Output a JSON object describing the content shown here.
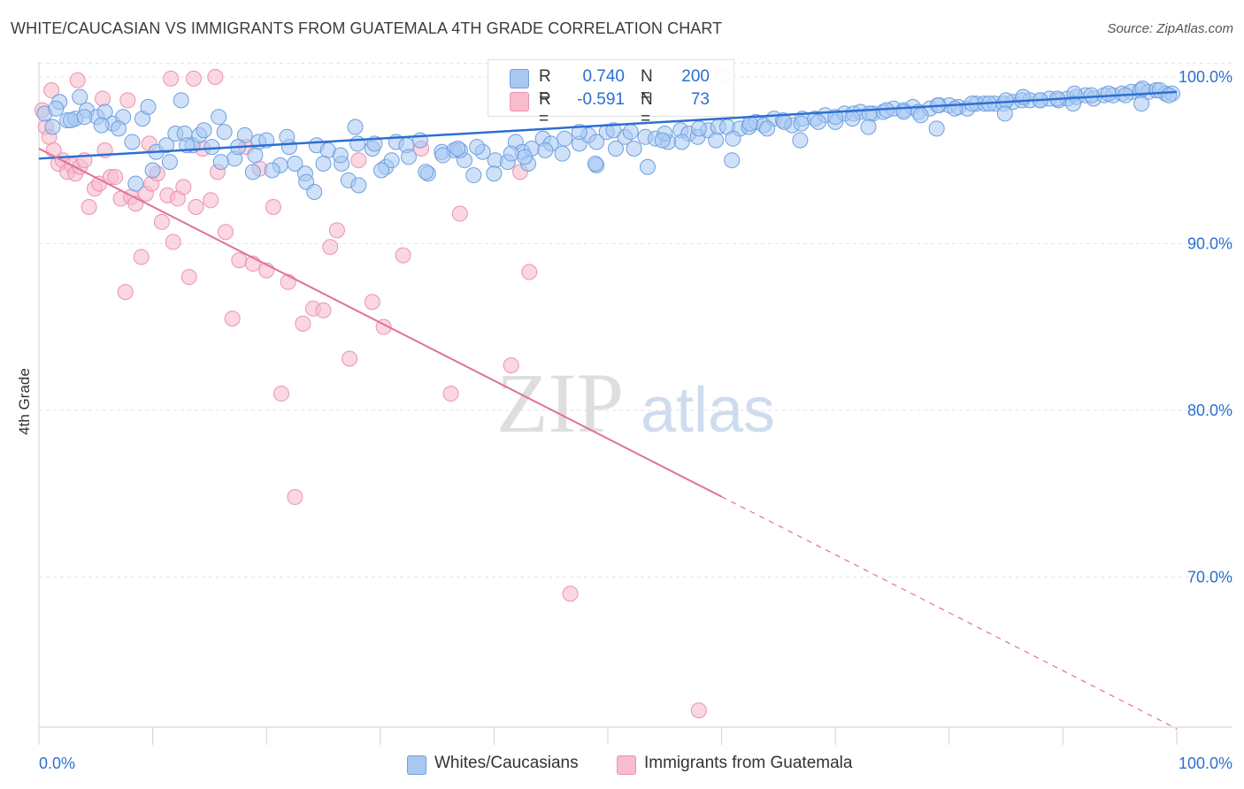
{
  "title": "WHITE/CAUCASIAN VS IMMIGRANTS FROM GUATEMALA 4TH GRADE CORRELATION CHART",
  "source": "Source: ZipAtlas.com",
  "watermark": {
    "zip": "ZIP",
    "atlas": "atlas"
  },
  "legend_top": [
    {
      "r_label": "R =",
      "r_value": "0.740",
      "n_label": "N =",
      "n_value": "200",
      "color": "#a8c8f2"
    },
    {
      "r_label": "R =",
      "r_value": "-0.591",
      "n_label": "N =",
      "n_value": "73",
      "color": "#f7bccd"
    }
  ],
  "legend_bottom": [
    {
      "label": "Whites/Caucasians",
      "color": "#a8c8f2"
    },
    {
      "label": "Immigrants from Guatemala",
      "color": "#f7bccd"
    }
  ],
  "colors": {
    "blue_fill": "#a8c8f2",
    "blue_stroke": "#6d9fe0",
    "blue_line": "#2c6fd1",
    "pink_fill": "#f7bccd",
    "pink_stroke": "#eb93af",
    "pink_line": "#e0709a",
    "tick_label": "#2c6fd1",
    "grid": "#e3e3e3"
  },
  "chart_data": {
    "type": "scatter",
    "title": "WHITE/CAUCASIAN VS IMMIGRANTS FROM GUATEMALA 4TH GRADE CORRELATION CHART",
    "xlabel": "",
    "ylabel": "4th Grade",
    "xlim": [
      0,
      100
    ],
    "ylim": [
      61,
      100.9
    ],
    "x_tick_labels": [
      "0.0%",
      "100.0%"
    ],
    "y_ticks": [
      70,
      80,
      90,
      100
    ],
    "y_tick_labels": [
      "70.0%",
      "80.0%",
      "90.0%",
      "100.0%"
    ],
    "grid": true,
    "legend_position": "top-center",
    "series": [
      {
        "name": "Whites/Caucasians",
        "r": 0.74,
        "n": 200,
        "trend": {
          "x": [
            0,
            100
          ],
          "y": [
            95.1,
            99.1
          ],
          "dashed_from": null
        },
        "x": [
          0.5,
          1.2,
          1.8,
          2.5,
          3.2,
          4.2,
          5.1,
          5.8,
          6.5,
          7.4,
          8.2,
          9.1,
          10.3,
          11.2,
          12.0,
          12.8,
          13.5,
          14.1,
          15.2,
          16.3,
          17.2,
          18.1,
          19.3,
          20.0,
          21.2,
          22.5,
          23.4,
          24.4,
          25.4,
          26.6,
          27.2,
          28.1,
          29.3,
          30.5,
          31.4,
          32.3,
          33.5,
          34.2,
          35.4,
          36.5,
          37.4,
          38.2,
          39.0,
          40.1,
          41.2,
          41.9,
          42.5,
          43.3,
          44.3,
          45.0,
          46.2,
          47.5,
          48.3,
          49.0,
          49.9,
          50.7,
          51.5,
          52.3,
          53.3,
          54.2,
          55.3,
          56.4,
          57.1,
          57.9,
          58.8,
          59.7,
          60.5,
          61.6,
          62.4,
          63.0,
          63.7,
          64.6,
          65.4,
          66.2,
          67.1,
          68.2,
          69.1,
          70.0,
          70.8,
          71.6,
          72.2,
          73.3,
          74.2,
          75.1,
          76.0,
          76.8,
          77.3,
          78.3,
          79.1,
          80.0,
          80.8,
          81.6,
          82.4,
          83.1,
          84.0,
          84.8,
          85.6,
          86.4,
          87.1,
          88.0,
          88.8,
          89.6,
          90.4,
          91.2,
          92.0,
          92.7,
          93.6,
          94.4,
          95.2,
          96.0,
          96.8,
          97.5,
          98.2,
          99.0,
          99.6,
          1.5,
          2.8,
          4.0,
          5.5,
          7.0,
          8.5,
          10.0,
          11.5,
          13.0,
          14.5,
          16.0,
          17.5,
          19.0,
          20.5,
          22.0,
          23.5,
          25.0,
          26.5,
          28.0,
          29.5,
          31.0,
          32.5,
          34.0,
          35.5,
          37.0,
          38.5,
          40.0,
          41.5,
          43.0,
          44.5,
          46.0,
          47.5,
          49.0,
          50.5,
          52.0,
          53.5,
          55.0,
          56.5,
          58.0,
          59.5,
          61.0,
          62.5,
          64.0,
          65.5,
          67.0,
          68.5,
          70.0,
          71.5,
          73.0,
          74.5,
          76.0,
          77.5,
          79.0,
          80.5,
          82.0,
          83.5,
          85.0,
          86.5,
          88.0,
          89.5,
          91.0,
          92.5,
          94.0,
          95.5,
          97.0,
          98.5,
          99.3,
          12.5,
          18.8,
          24.2,
          30.1,
          36.8,
          42.7,
          48.9,
          54.8,
          60.9,
          66.9,
          72.9,
          78.9,
          84.9,
          90.9,
          96.9,
          3.6,
          9.6,
          15.8,
          21.8,
          27.8
        ],
        "y": [
          97.8,
          97.0,
          98.5,
          97.4,
          97.5,
          98.0,
          97.6,
          97.9,
          97.2,
          97.6,
          96.1,
          97.5,
          95.5,
          95.9,
          96.6,
          96.6,
          95.9,
          96.5,
          95.8,
          96.7,
          95.1,
          96.5,
          96.1,
          96.2,
          94.7,
          94.8,
          94.2,
          95.9,
          95.6,
          94.8,
          93.8,
          93.5,
          95.7,
          94.6,
          96.1,
          95.9,
          96.2,
          94.2,
          95.5,
          95.6,
          95.0,
          94.1,
          95.5,
          95.0,
          94.9,
          96.1,
          95.5,
          95.7,
          96.3,
          96.0,
          96.3,
          96.0,
          96.5,
          94.7,
          96.7,
          95.7,
          96.4,
          95.7,
          96.4,
          96.3,
          96.1,
          96.8,
          96.6,
          96.4,
          96.8,
          97.0,
          97.0,
          96.9,
          97.0,
          97.3,
          97.1,
          97.5,
          97.4,
          97.1,
          97.5,
          97.5,
          97.7,
          97.3,
          97.8,
          97.8,
          97.9,
          97.8,
          97.9,
          98.1,
          98.0,
          98.2,
          97.9,
          98.1,
          98.3,
          98.3,
          98.2,
          98.1,
          98.4,
          98.4,
          98.4,
          98.4,
          98.5,
          98.6,
          98.6,
          98.6,
          98.7,
          98.6,
          98.7,
          98.8,
          98.9,
          98.7,
          98.9,
          98.9,
          99.0,
          99.1,
          99.2,
          99.1,
          99.2,
          99.0,
          99.0,
          98.1,
          97.4,
          97.6,
          97.1,
          96.9,
          93.6,
          94.4,
          94.9,
          95.9,
          96.8,
          94.9,
          95.8,
          95.3,
          94.4,
          95.8,
          93.7,
          94.8,
          95.3,
          96.0,
          96.0,
          95.0,
          95.2,
          94.3,
          95.3,
          95.6,
          95.8,
          94.2,
          95.4,
          94.8,
          95.6,
          95.4,
          96.7,
          96.1,
          96.8,
          96.7,
          94.6,
          96.6,
          96.1,
          96.9,
          96.2,
          96.3,
          97.2,
          96.9,
          97.3,
          97.2,
          97.3,
          97.6,
          97.5,
          97.8,
          98.0,
          97.9,
          97.7,
          98.3,
          98.1,
          98.4,
          98.4,
          98.6,
          98.8,
          98.6,
          98.7,
          99.0,
          98.9,
          99.0,
          98.9,
          99.3,
          99.2,
          98.9,
          98.6,
          94.3,
          93.1,
          94.4,
          95.7,
          95.2,
          94.8,
          96.2,
          95.0,
          96.2,
          97.0,
          96.9,
          97.8,
          98.4,
          98.4,
          98.8,
          98.2,
          97.6,
          96.4,
          97.0
        ],
        "color": "#a8c8f2"
      },
      {
        "name": "Immigrants from Guatemala",
        "r": -0.591,
        "n": 73,
        "trend": {
          "x": [
            0,
            100
          ],
          "y": [
            95.7,
            60.9
          ],
          "dashed_from": 60
        },
        "x": [
          0.3,
          0.6,
          0.9,
          1.3,
          1.7,
          2.1,
          2.5,
          2.9,
          3.2,
          3.6,
          4.0,
          4.4,
          4.9,
          5.3,
          5.8,
          6.3,
          6.7,
          7.2,
          7.6,
          8.1,
          8.5,
          9.0,
          9.4,
          9.9,
          10.4,
          10.8,
          11.3,
          11.8,
          12.2,
          12.7,
          13.2,
          13.8,
          14.4,
          15.1,
          15.7,
          16.4,
          17.0,
          17.6,
          18.2,
          18.8,
          19.4,
          20.0,
          20.6,
          21.3,
          21.9,
          22.5,
          23.2,
          24.1,
          25.0,
          25.6,
          26.2,
          27.3,
          28.1,
          29.3,
          30.3,
          32.0,
          33.6,
          36.2,
          37.0,
          41.5,
          42.3,
          43.1,
          46.7,
          58.0,
          60.1,
          1.1,
          3.4,
          5.6,
          7.8,
          9.7,
          11.6,
          13.6,
          15.5
        ],
        "y": [
          98.0,
          97.0,
          96.4,
          95.6,
          94.8,
          95.0,
          94.3,
          94.7,
          94.2,
          94.6,
          95.0,
          92.2,
          93.3,
          93.6,
          95.6,
          94.0,
          94.0,
          92.7,
          87.1,
          92.8,
          92.4,
          89.2,
          93.0,
          93.6,
          94.2,
          91.3,
          92.9,
          90.1,
          92.7,
          93.4,
          88.0,
          92.2,
          95.7,
          92.6,
          94.3,
          90.7,
          85.5,
          89.0,
          95.8,
          88.8,
          94.5,
          88.4,
          92.2,
          81.0,
          87.7,
          74.8,
          85.2,
          86.1,
          86.0,
          89.8,
          90.8,
          83.1,
          95.0,
          86.5,
          85.0,
          89.3,
          95.7,
          81.0,
          91.8,
          82.7,
          94.3,
          88.3,
          69.0,
          62.0,
          100.1,
          99.2,
          99.8,
          98.7,
          98.6,
          96.0,
          99.9,
          99.9,
          100.0
        ],
        "color": "#f7bccd"
      }
    ]
  }
}
